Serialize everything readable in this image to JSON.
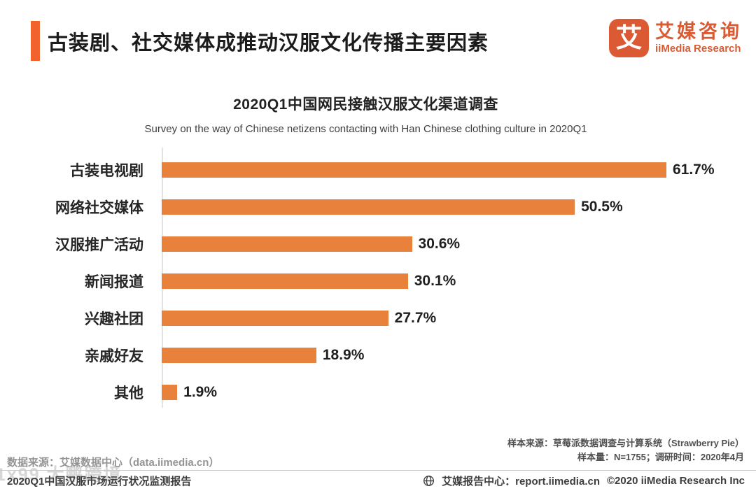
{
  "colors": {
    "accent": "#F2622D",
    "bar": "#E8813C",
    "brand": "#D95B33"
  },
  "header": {
    "title": "古装剧、社交媒体成推动汉服文化传播主要因素",
    "logo": {
      "icon_char": "艾",
      "brand_cn": "艾媒咨询",
      "brand_en": "iiMedia Research"
    }
  },
  "chart_data": {
    "type": "bar",
    "orientation": "horizontal",
    "title": "2020Q1中国网民接触汉服文化渠道调查",
    "subtitle": "Survey on the way of Chinese netizens contacting with Han Chinese clothing culture in 2020Q1",
    "categories": [
      "古装电视剧",
      "网络社交媒体",
      "汉服推广活动",
      "新闻报道",
      "兴趣社团",
      "亲戚好友",
      "其他"
    ],
    "values": [
      61.7,
      50.5,
      30.6,
      30.1,
      27.7,
      18.9,
      1.9
    ],
    "value_labels": [
      "61.7%",
      "50.5%",
      "30.6%",
      "30.1%",
      "27.7%",
      "18.9%",
      "1.9%"
    ],
    "xlim": [
      0,
      70
    ],
    "grid": false,
    "legend": "none",
    "bar_color": "#E8813C"
  },
  "notes": {
    "sample_source": "样本来源：草莓派数据调查与计算系统（Strawberry Pie）",
    "sample_size": "样本量：N=1755；调研时间：2020年4月",
    "data_source": "数据来源：艾媒数据中心（data.iimedia.cn）"
  },
  "footer": {
    "report_title": "2020Q1中国汉服市场运行状况监测报告",
    "report_center": "艾媒报告中心：report.iimedia.cn",
    "copyright": "©2020  iiMedia Research Inc",
    "globe_icon": "globe-icon"
  },
  "watermark": "1x99 大鹏跨境"
}
